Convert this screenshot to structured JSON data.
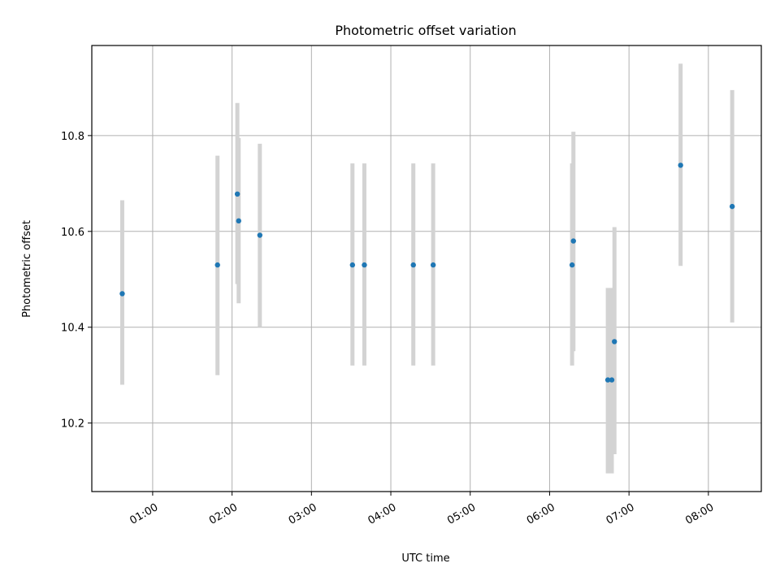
{
  "chart_data": {
    "type": "scatter",
    "title": "Photometric offset variation",
    "xlabel": "UTC time",
    "ylabel": "Photometric offset",
    "x_unit": "hours UTC",
    "xlim": [
      "00:14",
      "08:40"
    ],
    "ylim": [
      10.057,
      10.988
    ],
    "x_ticks": [
      "01:00",
      "02:00",
      "03:00",
      "04:00",
      "05:00",
      "06:00",
      "07:00",
      "08:00"
    ],
    "y_ticks": [
      "10.2",
      "10.4",
      "10.6",
      "10.8"
    ],
    "grid": true,
    "legend": "none",
    "colors": {
      "point": "#1f77b4",
      "errorbar": "#d3d3d3",
      "grid": "#b0b0b0"
    },
    "series": [
      {
        "points": [
          {
            "x": "00:37",
            "y": 10.47,
            "ylow": 10.28,
            "yhigh": 10.665
          },
          {
            "x": "01:49",
            "y": 10.53,
            "ylow": 10.3,
            "yhigh": 10.758
          },
          {
            "x": "02:04",
            "y": 10.678,
            "ylow": 10.49,
            "yhigh": 10.868
          },
          {
            "x": "02:05",
            "y": 10.622,
            "ylow": 10.45,
            "yhigh": 10.795
          },
          {
            "x": "02:21",
            "y": 10.592,
            "ylow": 10.4,
            "yhigh": 10.783
          },
          {
            "x": "03:31",
            "y": 10.53,
            "ylow": 10.32,
            "yhigh": 10.742
          },
          {
            "x": "03:40",
            "y": 10.53,
            "ylow": 10.32,
            "yhigh": 10.742
          },
          {
            "x": "04:17",
            "y": 10.53,
            "ylow": 10.32,
            "yhigh": 10.742
          },
          {
            "x": "04:32",
            "y": 10.53,
            "ylow": 10.32,
            "yhigh": 10.742
          },
          {
            "x": "06:17",
            "y": 10.53,
            "ylow": 10.32,
            "yhigh": 10.742
          },
          {
            "x": "06:18",
            "y": 10.58,
            "ylow": 10.35,
            "yhigh": 10.808
          },
          {
            "x": "06:44",
            "y": 10.29,
            "ylow": 10.095,
            "yhigh": 10.482
          },
          {
            "x": "06:47",
            "y": 10.29,
            "ylow": 10.095,
            "yhigh": 10.482
          },
          {
            "x": "06:49",
            "y": 10.37,
            "ylow": 10.135,
            "yhigh": 10.609
          },
          {
            "x": "07:39",
            "y": 10.738,
            "ylow": 10.528,
            "yhigh": 10.95
          },
          {
            "x": "08:18",
            "y": 10.652,
            "ylow": 10.41,
            "yhigh": 10.895
          }
        ]
      }
    ]
  }
}
